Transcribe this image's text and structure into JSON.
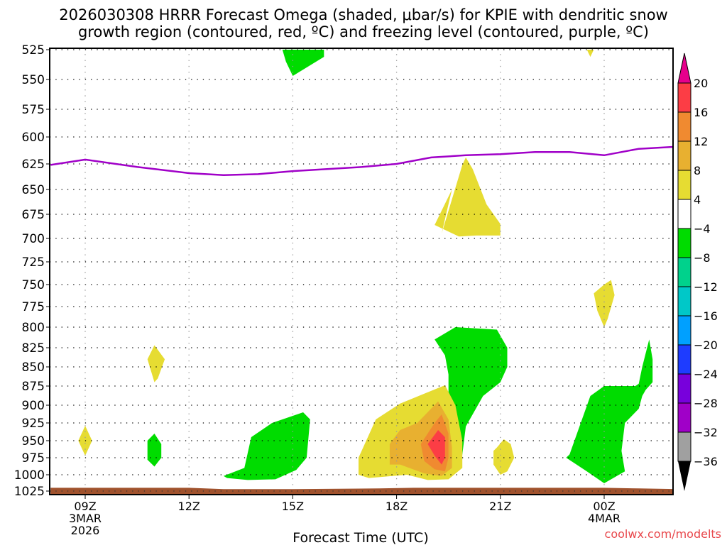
{
  "chart_data": {
    "type": "heatmap",
    "title_line1": "2026030308 HRRR Forecast Omega (shaded, μbar/s) for KPIE with dendritic snow",
    "title_line2": "growth region (contoured, red, ºC) and freezing level (contoured, purple, ºC)",
    "xlabel": "Forecast Time (UTC)",
    "ylabel": "",
    "credit": "coolwx.com/modelts",
    "x_unit": "hours after 09Z 3MAR2026",
    "xlim": [
      -1,
      17.1
    ],
    "x_ticks": [
      {
        "hour": 0,
        "label": "09Z",
        "sub1": "3MAR",
        "sub2": "2026"
      },
      {
        "hour": 3,
        "label": "12Z",
        "sub1": "",
        "sub2": ""
      },
      {
        "hour": 6,
        "label": "15Z",
        "sub1": "",
        "sub2": ""
      },
      {
        "hour": 9,
        "label": "18Z",
        "sub1": "",
        "sub2": ""
      },
      {
        "hour": 12,
        "label": "21Z",
        "sub1": "",
        "sub2": ""
      },
      {
        "hour": 15,
        "label": "00Z",
        "sub1": "4MAR",
        "sub2": ""
      }
    ],
    "y_unit": "hPa",
    "ylim": [
      525,
      1025
    ],
    "y_ticks": [
      {
        "p": 525,
        "label": "525"
      },
      {
        "p": 550,
        "label": "550"
      },
      {
        "p": 575,
        "label": "575"
      },
      {
        "p": 600,
        "label": "600"
      },
      {
        "p": 625,
        "label": "625"
      },
      {
        "p": 650,
        "label": "650"
      },
      {
        "p": 675,
        "label": "675"
      },
      {
        "p": 700,
        "label": "700"
      },
      {
        "p": 725,
        "label": "725"
      },
      {
        "p": 750,
        "label": "750"
      },
      {
        "p": 775,
        "label": "775"
      },
      {
        "p": 800,
        "label": "800"
      },
      {
        "p": 825,
        "label": "825"
      },
      {
        "p": 850,
        "label": "850"
      },
      {
        "p": 875,
        "label": "875"
      },
      {
        "p": 900,
        "label": "900"
      },
      {
        "p": 925,
        "label": "925"
      },
      {
        "p": 950,
        "label": "950"
      },
      {
        "p": 975,
        "label": "975"
      },
      {
        "p": 1000,
        "label": "1000"
      },
      {
        "p": 1025,
        "label": "1025"
      }
    ],
    "grid": true,
    "colorbar": {
      "placement": "right",
      "levels": [
        {
          "label": "20",
          "color": "#fc3d45"
        },
        {
          "label": "16",
          "color": "#f08a30"
        },
        {
          "label": "12",
          "color": "#e8b030"
        },
        {
          "label": "8",
          "color": "#e6dc32"
        },
        {
          "label": "4",
          "color": "#ffffff"
        },
        {
          "label": "−4",
          "color": "#00dc00"
        },
        {
          "label": "−8",
          "color": "#00d28c"
        },
        {
          "label": "−12",
          "color": "#00c8c8"
        },
        {
          "label": "−16",
          "color": "#00a0ff"
        },
        {
          "label": "−20",
          "color": "#1e3cff"
        },
        {
          "label": "−24",
          "color": "#7800dc"
        },
        {
          "label": "−28",
          "color": "#a000c8"
        },
        {
          "label": "−32",
          "color": "#a0a0a0"
        },
        {
          "label": "−36",
          "color": ""
        }
      ],
      "top_arrow_color": "#e6008c",
      "bottom_arrow_color": "#000000"
    },
    "freezing_level": {
      "name": "freezing level (0ºC)",
      "color": "#a000c8",
      "points": [
        [
          -1,
          626
        ],
        [
          0,
          621
        ],
        [
          1.5,
          628
        ],
        [
          3,
          634
        ],
        [
          4,
          636
        ],
        [
          5,
          635
        ],
        [
          6,
          632
        ],
        [
          8,
          628
        ],
        [
          9,
          625
        ],
        [
          10,
          619
        ],
        [
          11,
          617
        ],
        [
          12,
          616
        ],
        [
          13,
          614
        ],
        [
          14,
          614
        ],
        [
          15,
          617
        ],
        [
          16,
          611
        ],
        [
          17.1,
          609
        ]
      ]
    },
    "surface": {
      "name": "surface/terrain",
      "color": "#a0522d",
      "points": [
        [
          -1,
          1020
        ],
        [
          3,
          1020
        ],
        [
          4,
          1022
        ],
        [
          6,
          1022
        ],
        [
          8.5,
          1021
        ],
        [
          9.5,
          1020
        ],
        [
          15,
          1020
        ],
        [
          16,
          1021
        ],
        [
          17.1,
          1022
        ]
      ]
    },
    "omega_regions": [
      {
        "level": "-4",
        "color": "#00dc00",
        "points": [
          [
            5.7,
            525
          ],
          [
            6.9,
            525
          ],
          [
            6.9,
            531
          ],
          [
            6.0,
            547
          ],
          [
            5.8,
            535
          ]
        ]
      },
      {
        "level": "4",
        "color": "#e6dc32",
        "points": [
          [
            14.5,
            525
          ],
          [
            14.7,
            525
          ],
          [
            14.6,
            531
          ]
        ]
      },
      {
        "level": "4",
        "color": "#e6dc32",
        "points": [
          [
            10.3,
            695
          ],
          [
            10.9,
            626
          ],
          [
            11.0,
            619
          ],
          [
            11.2,
            630
          ],
          [
            11.6,
            665
          ],
          [
            12.0,
            685
          ],
          [
            12.0,
            697
          ],
          [
            11.3,
            697
          ],
          [
            10.8,
            698
          ],
          [
            10.1,
            686
          ],
          [
            10.6,
            650
          ]
        ]
      },
      {
        "level": "4",
        "color": "#e6dc32",
        "points": [
          [
            15.0,
            750
          ],
          [
            15.2,
            745
          ],
          [
            15.3,
            762
          ],
          [
            15.1,
            790
          ],
          [
            15.0,
            800
          ],
          [
            14.8,
            780
          ],
          [
            14.7,
            760
          ]
        ]
      },
      {
        "level": "-4",
        "color": "#00dc00",
        "points": [
          [
            10.1,
            815
          ],
          [
            10.7,
            800
          ],
          [
            11.9,
            803
          ],
          [
            12.2,
            825
          ],
          [
            12.2,
            850
          ],
          [
            12.0,
            870
          ],
          [
            11.5,
            888
          ],
          [
            11.0,
            930
          ],
          [
            10.9,
            970
          ],
          [
            10.8,
            990
          ],
          [
            10.6,
            950
          ],
          [
            10.5,
            900
          ],
          [
            10.5,
            860
          ],
          [
            10.4,
            835
          ]
        ]
      },
      {
        "level": "4",
        "color": "#e6dc32",
        "points": [
          [
            11.9,
            960
          ],
          [
            12.1,
            948
          ],
          [
            12.3,
            955
          ],
          [
            12.4,
            975
          ],
          [
            12.2,
            995
          ],
          [
            12.0,
            1000
          ],
          [
            11.8,
            985
          ],
          [
            11.8,
            965
          ]
        ]
      },
      {
        "level": "-4",
        "color": "#00dc00",
        "points": [
          [
            14.0,
            970
          ],
          [
            14.6,
            888
          ],
          [
            15.0,
            875
          ],
          [
            15.9,
            875
          ],
          [
            16.0,
            872
          ],
          [
            16.1,
            850
          ],
          [
            16.3,
            815
          ],
          [
            16.4,
            840
          ],
          [
            16.4,
            870
          ],
          [
            16.2,
            880
          ],
          [
            16.1,
            888
          ],
          [
            16.0,
            905
          ],
          [
            15.6,
            925
          ],
          [
            15.5,
            965
          ],
          [
            15.6,
            995
          ],
          [
            15.0,
            1013
          ],
          [
            14.5,
            995
          ],
          [
            13.9,
            975
          ]
        ]
      },
      {
        "level": "4",
        "color": "#e6dc32",
        "points": [
          [
            -0.2,
            950
          ],
          [
            0.0,
            929
          ],
          [
            0.2,
            950
          ],
          [
            0.0,
            972
          ]
        ]
      },
      {
        "level": "4",
        "color": "#e6dc32",
        "points": [
          [
            1.8,
            840
          ],
          [
            2.0,
            822
          ],
          [
            2.3,
            840
          ],
          [
            2.1,
            865
          ],
          [
            2.0,
            870
          ],
          [
            1.9,
            855
          ]
        ]
      },
      {
        "level": "-4",
        "color": "#00dc00",
        "points": [
          [
            1.8,
            950
          ],
          [
            2.0,
            940
          ],
          [
            2.2,
            955
          ],
          [
            2.2,
            975
          ],
          [
            2.0,
            988
          ],
          [
            1.8,
            978
          ],
          [
            1.8,
            960
          ]
        ]
      },
      {
        "level": "-4",
        "color": "#00dc00",
        "points": [
          [
            4.0,
            1002
          ],
          [
            4.6,
            990
          ],
          [
            4.8,
            945
          ],
          [
            5.4,
            925
          ],
          [
            6.3,
            910
          ],
          [
            6.5,
            920
          ],
          [
            6.4,
            975
          ],
          [
            6.1,
            993
          ],
          [
            5.5,
            1007
          ],
          [
            4.7,
            1008
          ],
          [
            4.1,
            1005
          ]
        ]
      },
      {
        "level": "4",
        "color": "#e6dc32",
        "points": [
          [
            7.9,
            975
          ],
          [
            8.4,
            920
          ],
          [
            9.1,
            898
          ],
          [
            9.8,
            885
          ],
          [
            10.4,
            874
          ],
          [
            10.7,
            900
          ],
          [
            10.9,
            950
          ],
          [
            10.9,
            990
          ],
          [
            10.5,
            1007
          ],
          [
            9.9,
            1008
          ],
          [
            9.3,
            1000
          ],
          [
            8.2,
            1005
          ],
          [
            7.9,
            1000
          ]
        ]
      },
      {
        "level": "8",
        "color": "#e8b030",
        "points": [
          [
            8.8,
            955
          ],
          [
            9.1,
            935
          ],
          [
            9.6,
            925
          ],
          [
            10.2,
            895
          ],
          [
            10.5,
            920
          ],
          [
            10.6,
            960
          ],
          [
            10.6,
            990
          ],
          [
            10.3,
            1002
          ],
          [
            9.8,
            998
          ],
          [
            9.1,
            985
          ],
          [
            8.8,
            985
          ]
        ]
      },
      {
        "level": "12",
        "color": "#f08a30",
        "points": [
          [
            9.7,
            955
          ],
          [
            10.1,
            925
          ],
          [
            10.3,
            913
          ],
          [
            10.5,
            940
          ],
          [
            10.5,
            975
          ],
          [
            10.4,
            995
          ],
          [
            10.1,
            992
          ],
          [
            9.8,
            980
          ]
        ]
      },
      {
        "level": "16",
        "color": "#fc3d45",
        "points": [
          [
            9.9,
            955
          ],
          [
            10.2,
            935
          ],
          [
            10.4,
            945
          ],
          [
            10.4,
            975
          ],
          [
            10.3,
            985
          ],
          [
            10.1,
            972
          ]
        ]
      }
    ]
  }
}
